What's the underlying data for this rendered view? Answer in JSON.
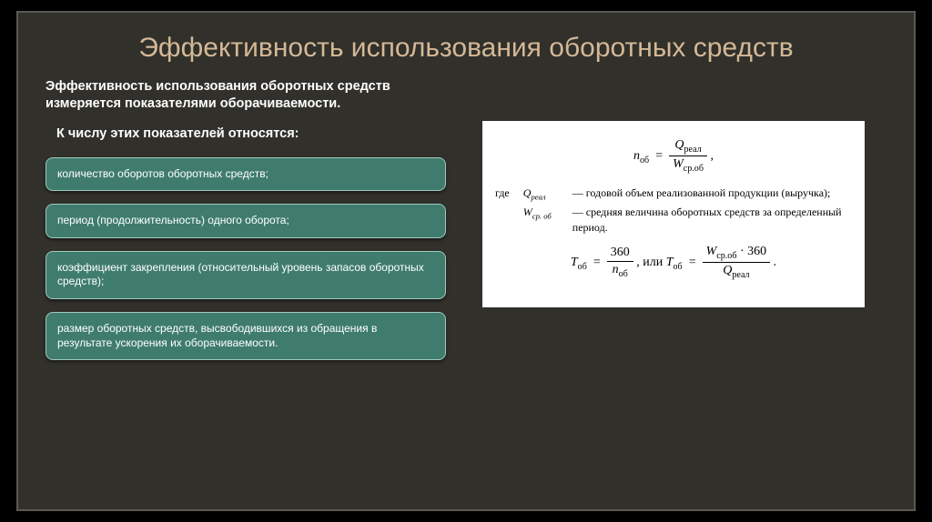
{
  "slide": {
    "title": "Эффективность использования оборотных средств",
    "intro": "Эффективность использования оборотных средств измеряется показателями оборачиваемости.",
    "subhead": "К числу этих показателей относятся:",
    "bullets": [
      "количество оборотов оборотных средств;",
      "период (продолжительность) одного оборота;",
      "коэффициент закрепления (относительный уровень запасов оборотных средств);",
      "размер оборотных средств, высвободившихся из обращения в результате ускорения их оборачиваемости."
    ],
    "formula": {
      "eq1_lhs": "n",
      "eq1_lhs_sub": "об",
      "eq1_num": "Q",
      "eq1_num_sub": "реал",
      "eq1_den": "W",
      "eq1_den_sub": "ср.об",
      "where_label": "где",
      "where1_sym": "Q",
      "where1_sym_sub": "реал",
      "where1_txt": "— годовой объем реализованной продукции (выручка);",
      "where2_sym": "W",
      "where2_sym_sub": "ср. об",
      "where2_txt": "— средняя величина оборотных средств за определенный период.",
      "eq2_lhs": "T",
      "eq2_lhs_sub": "об",
      "eq2_num1": "360",
      "eq2_den1": "n",
      "eq2_den1_sub": "об",
      "eq2_sep": ",  или  ",
      "eq2_num2a": "W",
      "eq2_num2a_sub": "ср.об",
      "eq2_num2_dot": " · 360",
      "eq2_den2": "Q",
      "eq2_den2_sub": "реал",
      "eq2_tail": "."
    }
  },
  "style": {
    "title_color": "#d4b896",
    "title_fontsize": 30,
    "body_text_color": "#ffffff",
    "body_fontsize": 14.5,
    "bullet_bg": "#3f7c6e",
    "bullet_border": "#9fcac0",
    "bullet_fontsize": 12,
    "slide_bg": "#31302b",
    "slide_border": "#5a5a52",
    "formula_bg": "#ffffff",
    "formula_fontsize": 12
  }
}
